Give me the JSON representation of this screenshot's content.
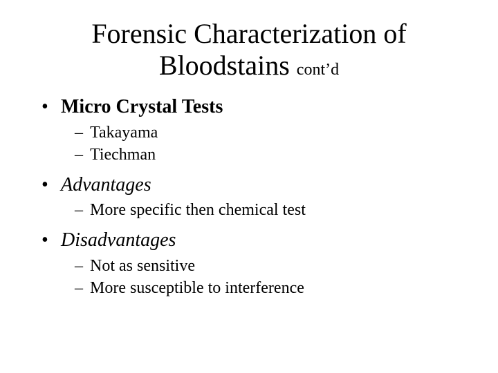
{
  "colors": {
    "background": "#ffffff",
    "text": "#000000"
  },
  "typography": {
    "font_family": "Times New Roman",
    "title_fontsize_pt": 40,
    "contd_fontsize_pt": 24,
    "level1_fontsize_pt": 28,
    "level2_fontsize_pt": 24
  },
  "title": {
    "line1": "Forensic Characterization of",
    "line2": "Bloodstains",
    "contd": "cont’d"
  },
  "bullets": [
    {
      "text": "Micro Crystal Tests",
      "style": "bold",
      "sub": [
        "Takayama",
        "Tiechman"
      ]
    },
    {
      "text": "Advantages",
      "style": "italic",
      "sub": [
        "More specific then chemical test"
      ]
    },
    {
      "text": "Disadvantages",
      "style": "italic",
      "sub": [
        "Not as sensitive",
        "More susceptible to interference"
      ]
    }
  ]
}
